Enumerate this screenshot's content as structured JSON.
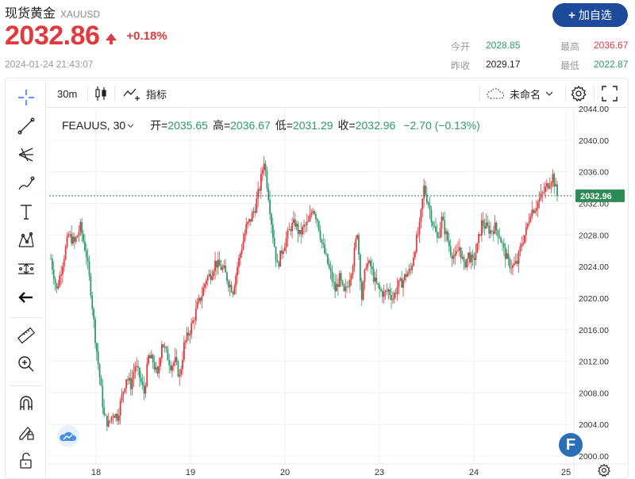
{
  "header": {
    "title": "现货黄金",
    "symbol": "XAUUSD",
    "price": "2032.86",
    "change_pct": "+0.18%",
    "timestamp": "2024-01-24 21:43:07",
    "add_button": "加自选",
    "stats": {
      "open_label": "今开",
      "open": "2028.85",
      "high_label": "最高",
      "high": "2036.67",
      "prev_close_label": "昨收",
      "prev_close": "2029.17",
      "low_label": "最低",
      "low": "2022.87"
    }
  },
  "toolbar": {
    "interval": "30m",
    "indicators_label": "指标",
    "layout_name": "未命名"
  },
  "legend": {
    "symbol": "FEAUUS, 30",
    "open_label": "开",
    "open": "2035.65",
    "high_label": "高",
    "high": "2036.67",
    "low_label": "低",
    "low": "2031.29",
    "close_label": "收",
    "close": "2032.96",
    "change": "−2.70 (−0.13%)"
  },
  "colors": {
    "up": "#e0393e",
    "down": "#2e9a6b",
    "accent": "#1e4a9c",
    "grid": "#eef0f3"
  },
  "chart_data": {
    "type": "candlestick",
    "y_ticks": [
      "2044.00",
      "2040.00",
      "2036.00",
      "2032.00",
      "2028.00",
      "2024.00",
      "2020.00",
      "2016.00",
      "2012.00",
      "2008.00",
      "2004.00",
      "2000.00"
    ],
    "ylim": [
      1999,
      2044
    ],
    "x_ticks": [
      "18",
      "19",
      "20",
      "23",
      "24",
      "25"
    ],
    "last_price_label": "2032.96",
    "last_price": 2032.96,
    "close_path": [
      [
        0,
        2025.0
      ],
      [
        4,
        2021.0
      ],
      [
        8,
        2024.5
      ],
      [
        12,
        2028.0
      ],
      [
        16,
        2027.0
      ],
      [
        20,
        2029.0
      ],
      [
        24,
        2025.5
      ],
      [
        27,
        2021.0
      ],
      [
        30,
        2015.0
      ],
      [
        33,
        2010.0
      ],
      [
        36,
        2005.0
      ],
      [
        39,
        2004.0
      ],
      [
        42,
        2005.5
      ],
      [
        45,
        2005.0
      ],
      [
        48,
        2007.5
      ],
      [
        51,
        2010.0
      ],
      [
        54,
        2009.0
      ],
      [
        57,
        2011.5
      ],
      [
        60,
        2010.0
      ],
      [
        63,
        2008.0
      ],
      [
        66,
        2012.5
      ],
      [
        69,
        2012.0
      ],
      [
        72,
        2010.0
      ],
      [
        75,
        2014.5
      ],
      [
        78,
        2013.0
      ],
      [
        81,
        2011.5
      ],
      [
        84,
        2012.0
      ],
      [
        87,
        2010.0
      ],
      [
        90,
        2014.0
      ],
      [
        93,
        2015.5
      ],
      [
        96,
        2017.0
      ],
      [
        99,
        2019.0
      ],
      [
        102,
        2020.5
      ],
      [
        105,
        2022.5
      ],
      [
        108,
        2023.0
      ],
      [
        111,
        2024.5
      ],
      [
        114,
        2024.0
      ],
      [
        117,
        2023.5
      ],
      [
        120,
        2022.0
      ],
      [
        123,
        2021.0
      ],
      [
        126,
        2024.0
      ],
      [
        129,
        2026.5
      ],
      [
        132,
        2029.0
      ],
      [
        135,
        2030.0
      ],
      [
        138,
        2031.5
      ],
      [
        141,
        2034.0
      ],
      [
        144,
        2037.5
      ],
      [
        147,
        2033.0
      ],
      [
        150,
        2028.0
      ],
      [
        153,
        2024.0
      ],
      [
        156,
        2026.0
      ],
      [
        159,
        2027.5
      ],
      [
        162,
        2029.0
      ],
      [
        165,
        2029.5
      ],
      [
        168,
        2028.0
      ],
      [
        171,
        2029.0
      ],
      [
        174,
        2029.5
      ],
      [
        177,
        2031.5
      ],
      [
        180,
        2030.0
      ],
      [
        183,
        2027.0
      ],
      [
        186,
        2025.0
      ],
      [
        189,
        2023.0
      ],
      [
        192,
        2021.0
      ],
      [
        195,
        2022.5
      ],
      [
        198,
        2020.5
      ],
      [
        201,
        2022.0
      ],
      [
        204,
        2024.5
      ],
      [
        207,
        2028.5
      ],
      [
        210,
        2020.0
      ],
      [
        213,
        2024.5
      ],
      [
        216,
        2024.0
      ],
      [
        219,
        2022.0
      ],
      [
        222,
        2021.0
      ],
      [
        225,
        2020.5
      ],
      [
        228,
        2021.0
      ],
      [
        231,
        2020.0
      ],
      [
        234,
        2021.5
      ],
      [
        237,
        2022.0
      ],
      [
        240,
        2023.0
      ],
      [
        243,
        2023.5
      ],
      [
        246,
        2026.5
      ],
      [
        249,
        2029.0
      ],
      [
        252,
        2034.0
      ],
      [
        255,
        2032.0
      ],
      [
        258,
        2029.5
      ],
      [
        261,
        2027.5
      ],
      [
        264,
        2030.0
      ],
      [
        267,
        2028.0
      ],
      [
        270,
        2026.0
      ],
      [
        273,
        2025.0
      ],
      [
        276,
        2026.5
      ],
      [
        279,
        2024.0
      ],
      [
        282,
        2025.5
      ],
      [
        285,
        2024.5
      ],
      [
        288,
        2026.5
      ],
      [
        291,
        2029.5
      ],
      [
        294,
        2029.0
      ],
      [
        297,
        2028.5
      ],
      [
        300,
        2029.0
      ],
      [
        303,
        2028.0
      ],
      [
        306,
        2026.0
      ],
      [
        309,
        2024.5
      ],
      [
        312,
        2024.0
      ],
      [
        315,
        2024.5
      ],
      [
        318,
        2027.0
      ],
      [
        321,
        2028.5
      ],
      [
        324,
        2031.0
      ],
      [
        327,
        2031.5
      ],
      [
        330,
        2032.5
      ],
      [
        333,
        2033.5
      ],
      [
        336,
        2034.5
      ],
      [
        339,
        2035.5
      ],
      [
        342,
        2032.96
      ]
    ]
  }
}
